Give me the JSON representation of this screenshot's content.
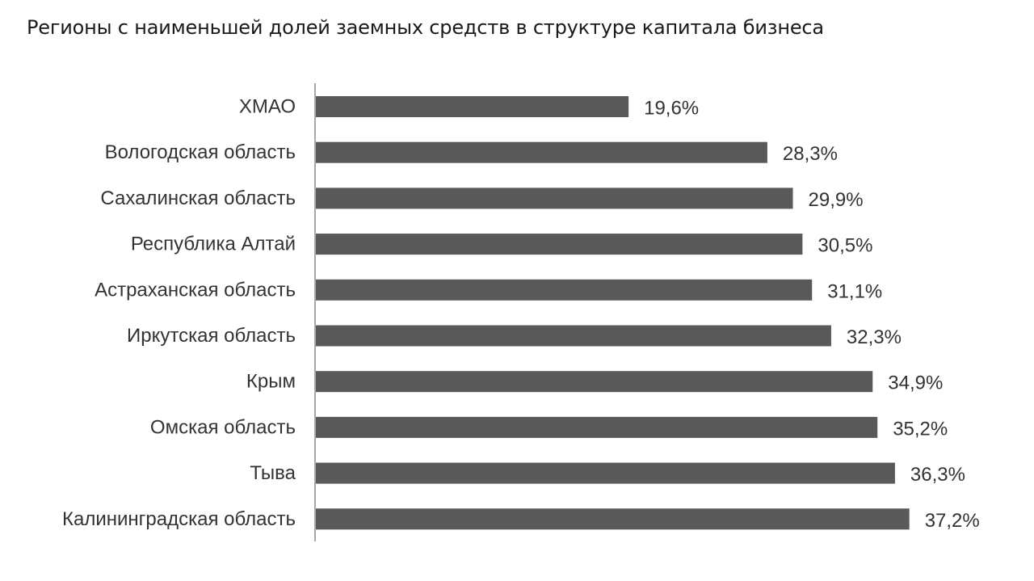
{
  "chart_data": {
    "type": "bar",
    "orientation": "horizontal",
    "title": "Регионы с наименьшей долей заемных средств в структуре капитала бизнеса",
    "xlabel": "",
    "ylabel": "",
    "categories": [
      "ХМАО",
      "Вологодская область",
      "Сахалинская область",
      "Республика Алтай",
      "Астраханская область",
      "Иркутская область",
      "Крым",
      "Омская область",
      "Тыва",
      "Калининградская область"
    ],
    "values": [
      19.6,
      28.3,
      29.9,
      30.5,
      31.1,
      32.3,
      34.9,
      35.2,
      36.3,
      37.2
    ],
    "value_labels": [
      "19,6%",
      "28,3%",
      "29,9%",
      "30,5%",
      "31,1%",
      "32,3%",
      "34,9%",
      "35,2%",
      "36,3%",
      "37,2%"
    ],
    "xlim": [
      0,
      40
    ],
    "grid": false,
    "legend": "none",
    "bar_color": "#595959"
  }
}
